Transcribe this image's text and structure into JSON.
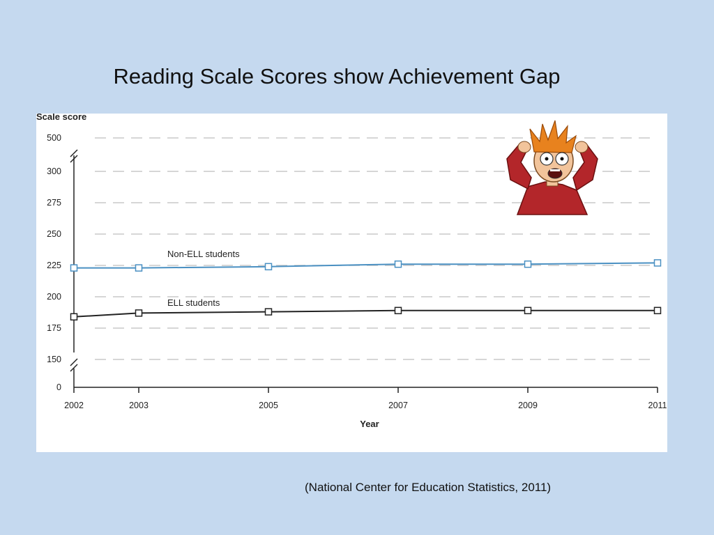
{
  "slide": {
    "title": "Reading Scale Scores show Achievement Gap",
    "caption": "(National Center for Education Statistics, 2011)"
  },
  "illustration": {
    "icon": "panicked-cartoon-man-icon"
  },
  "colors": {
    "background": "#c5d9ef",
    "panel": "#ffffff",
    "non_ell_line": "#4a90c2",
    "ell_line": "#222222",
    "gridline": "#c8c8c8"
  },
  "chart_data": {
    "type": "line",
    "ylabel": "Scale score",
    "xlabel": "Year",
    "x": [
      2002,
      2003,
      2005,
      2007,
      2009,
      2011
    ],
    "x_tick_labels": [
      "2002",
      "2003",
      "2005",
      "2007",
      "2009",
      "2011"
    ],
    "y_ticks": [
      0,
      150,
      175,
      200,
      225,
      250,
      275,
      300,
      500
    ],
    "y_axis_breaks": [
      "0-150",
      "300-500"
    ],
    "grid": true,
    "series": [
      {
        "name": "Non-ELL students",
        "values": [
          223,
          223,
          224,
          226,
          226,
          227
        ]
      },
      {
        "name": "ELL students",
        "values": [
          184,
          187,
          188,
          189,
          189,
          189
        ]
      }
    ]
  }
}
